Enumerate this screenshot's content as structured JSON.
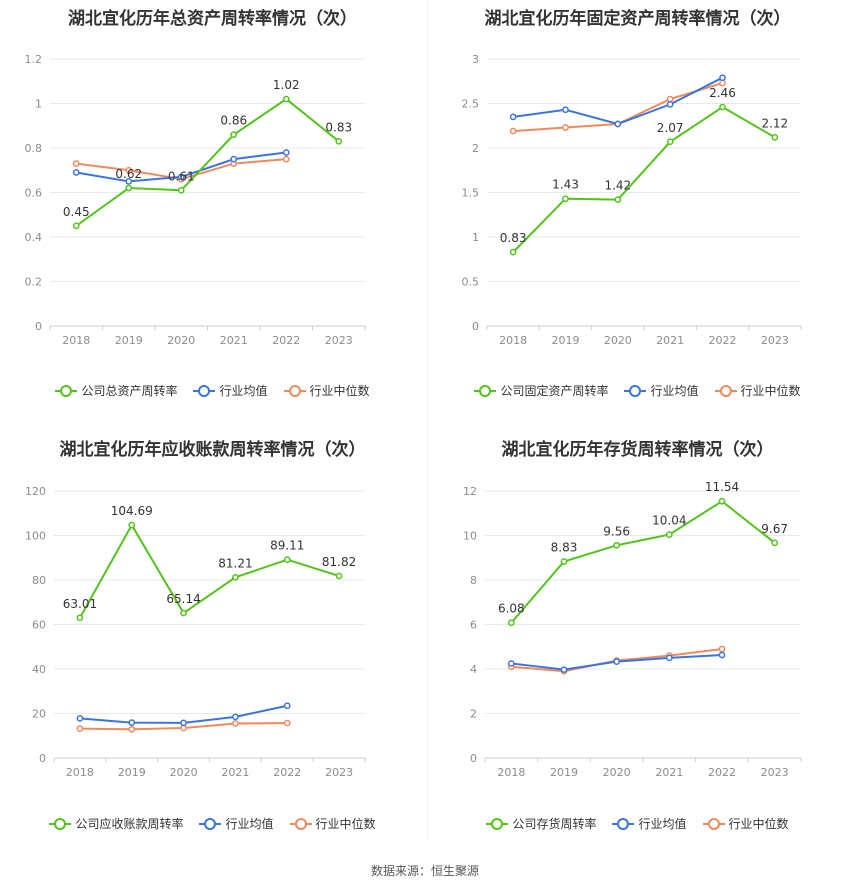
{
  "source": "数据来源：恒生聚源",
  "chart_data": [
    {
      "type": "line",
      "title": "湖北宜化历年总资产周转率情况（次）",
      "categories": [
        "2018",
        "2019",
        "2020",
        "2021",
        "2022",
        "2023"
      ],
      "yticks": [
        "0",
        "0.2",
        "0.4",
        "0.6",
        "0.8",
        "1",
        "1.2"
      ],
      "ylim": [
        0,
        1.2
      ],
      "grid": true,
      "legend_position": "bottom",
      "series": [
        {
          "name": "公司总资产周转率",
          "color": "#52c41a",
          "values": [
            0.45,
            0.62,
            0.61,
            0.86,
            1.02,
            0.83
          ],
          "labels": [
            "0.45",
            "0.62",
            "0.61",
            "0.86",
            "1.02",
            "0.83"
          ]
        },
        {
          "name": "行业均值",
          "color": "#3b74e0",
          "values": [
            0.69,
            0.65,
            0.67,
            0.75,
            0.78,
            null
          ]
        },
        {
          "name": "行业中位数",
          "color": "#f08a5d",
          "values": [
            0.73,
            0.7,
            0.66,
            0.73,
            0.75,
            null
          ]
        }
      ]
    },
    {
      "type": "line",
      "title": "湖北宜化历年固定资产周转率情况（次）",
      "categories": [
        "2018",
        "2019",
        "2020",
        "2021",
        "2022",
        "2023"
      ],
      "yticks": [
        "0",
        "0.5",
        "1",
        "1.5",
        "2",
        "2.5",
        "3"
      ],
      "ylim": [
        0,
        3
      ],
      "grid": true,
      "legend_position": "bottom",
      "series": [
        {
          "name": "公司固定资产周转率",
          "color": "#52c41a",
          "values": [
            0.83,
            1.43,
            1.42,
            2.07,
            2.46,
            2.12
          ],
          "labels": [
            "0.83",
            "1.43",
            "1.42",
            "2.07",
            "2.46",
            "2.12"
          ]
        },
        {
          "name": "行业均值",
          "color": "#3b74e0",
          "values": [
            2.35,
            2.43,
            2.27,
            2.49,
            2.79,
            null
          ]
        },
        {
          "name": "行业中位数",
          "color": "#f08a5d",
          "values": [
            2.19,
            2.23,
            2.27,
            2.55,
            2.73,
            null
          ]
        }
      ]
    },
    {
      "type": "line",
      "title": "湖北宜化历年应收账款周转率情况（次）",
      "categories": [
        "2018",
        "2019",
        "2020",
        "2021",
        "2022",
        "2023"
      ],
      "yticks": [
        "0",
        "20",
        "40",
        "60",
        "80",
        "100",
        "120"
      ],
      "ylim": [
        0,
        120
      ],
      "grid": true,
      "legend_position": "bottom",
      "series": [
        {
          "name": "公司应收账款周转率",
          "color": "#52c41a",
          "values": [
            63.01,
            104.69,
            65.14,
            81.21,
            89.11,
            81.82
          ],
          "labels": [
            "63.01",
            "104.69",
            "65.14",
            "81.21",
            "89.11",
            "81.82"
          ]
        },
        {
          "name": "行业均值",
          "color": "#3b74e0",
          "values": [
            17.8,
            15.9,
            15.8,
            18.5,
            23.5,
            null
          ]
        },
        {
          "name": "行业中位数",
          "color": "#f08a5d",
          "values": [
            13.2,
            12.9,
            13.5,
            15.5,
            15.7,
            null
          ]
        }
      ]
    },
    {
      "type": "line",
      "title": "湖北宜化历年存货周转率情况（次）",
      "categories": [
        "2018",
        "2019",
        "2020",
        "2021",
        "2022",
        "2023"
      ],
      "yticks": [
        "0",
        "2",
        "4",
        "6",
        "8",
        "10",
        "12"
      ],
      "ylim": [
        0,
        12
      ],
      "grid": true,
      "legend_position": "bottom",
      "series": [
        {
          "name": "公司存货周转率",
          "color": "#52c41a",
          "values": [
            6.08,
            8.83,
            9.56,
            10.04,
            11.54,
            9.67
          ],
          "labels": [
            "6.08",
            "8.83",
            "9.56",
            "10.04",
            "11.54",
            "9.67"
          ]
        },
        {
          "name": "行业均值",
          "color": "#3b74e0",
          "values": [
            4.25,
            3.97,
            4.33,
            4.5,
            4.63,
            null
          ]
        },
        {
          "name": "行业中位数",
          "color": "#f08a5d",
          "values": [
            4.1,
            3.9,
            4.38,
            4.6,
            4.9,
            null
          ]
        }
      ]
    }
  ]
}
